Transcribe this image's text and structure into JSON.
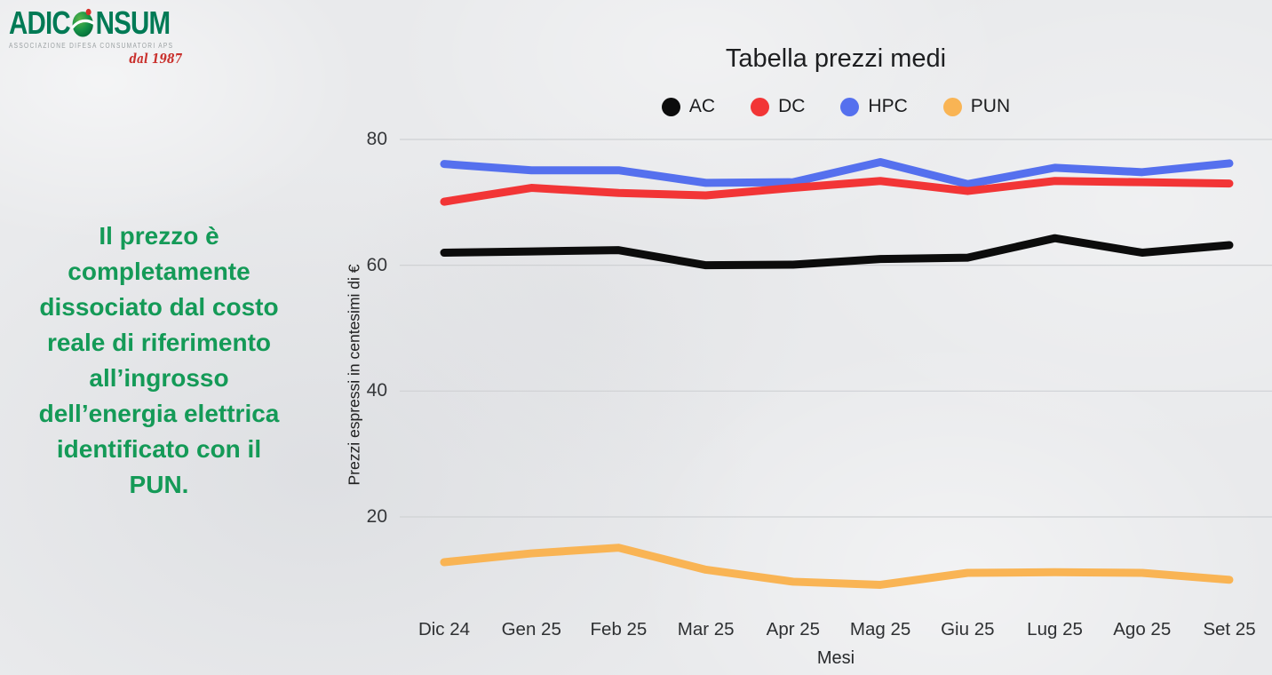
{
  "logo": {
    "brand_prefix": "ADIC",
    "brand_suffix": "NSUM",
    "tagline": "Associazione Difesa Consumatori APS",
    "since": "dal 1987"
  },
  "callout": {
    "text": "Il prezzo è\ncompletamente\ndissociato dal costo\nreale di riferimento\nall’ingrosso\ndell’energia elettrica\nidentificato con il\nPUN."
  },
  "chart_data": {
    "type": "line",
    "title": "Tabella prezzi medi",
    "xlabel": "Mesi",
    "ylabel": "Prezzi espressi in centesimi di €",
    "categories": [
      "Dic 24",
      "Gen 25",
      "Feb 25",
      "Mar 25",
      "Apr 25",
      "Mag 25",
      "Giu 25",
      "Lug 25",
      "Ago 25",
      "Set 25"
    ],
    "series": [
      {
        "name": "AC",
        "color": "#0c0c0c",
        "values": [
          62,
          62.2,
          62.4,
          60,
          60.1,
          61,
          61.2,
          64.3,
          62,
          63.2
        ]
      },
      {
        "name": "DC",
        "color": "#f23536",
        "values": [
          70.1,
          72.3,
          71.5,
          71.1,
          72.3,
          73.4,
          71.8,
          73.4,
          73.2,
          73.0
        ]
      },
      {
        "name": "HPC",
        "color": "#5570ee",
        "values": [
          76.1,
          75.1,
          75.1,
          73.1,
          73.2,
          76.4,
          72.9,
          75.5,
          74.8,
          76.2
        ]
      },
      {
        "name": "PUN",
        "color": "#f9b454",
        "values": [
          12.8,
          14.2,
          15.1,
          11.6,
          9.7,
          9.2,
          11.1,
          11.2,
          11.1,
          10.0
        ]
      }
    ],
    "y_axis": {
      "ticks": [
        20,
        40,
        60,
        80
      ],
      "range_shown": [
        5,
        84
      ]
    },
    "legend_position": "top",
    "grid": "horizontal-only",
    "gridline_color": "#cfd1d4"
  },
  "colors": {
    "background": "#e9eaec",
    "brand_green": "#007a55",
    "callout_green": "#149a57",
    "since_red": "#c9302c"
  }
}
